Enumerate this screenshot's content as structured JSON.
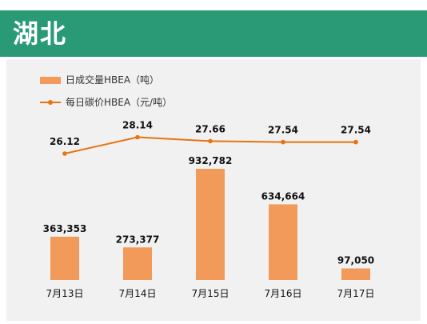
{
  "header": {
    "title": "湖北"
  },
  "colors": {
    "header_bg": "#2a9a76",
    "bar": "#f29a5a",
    "line": "#e8730f",
    "panel_bg": "#f1f1f1"
  },
  "legend": {
    "bar_label": "日成交量HBEA（吨）",
    "line_label": "每日碳价HBEA（元/吨）"
  },
  "chart_data": {
    "type": "bar",
    "categories": [
      "7月13日",
      "7月14日",
      "7月15日",
      "7月16日",
      "7月17日"
    ],
    "series": [
      {
        "name": "日成交量HBEA（吨）",
        "type": "bar",
        "values": [
          363353,
          273377,
          932782,
          634664,
          97050
        ],
        "labels": [
          "363,353",
          "273,377",
          "932,782",
          "634,664",
          "97,050"
        ]
      },
      {
        "name": "每日碳价HBEA（元/吨）",
        "type": "line",
        "values": [
          26.12,
          28.14,
          27.66,
          27.54,
          27.54
        ],
        "labels": [
          "26.12",
          "28.14",
          "27.66",
          "27.54",
          "27.54"
        ]
      }
    ],
    "title": "",
    "xlabel": "",
    "ylabel": "",
    "legend_position": "top-left",
    "grid": false
  }
}
